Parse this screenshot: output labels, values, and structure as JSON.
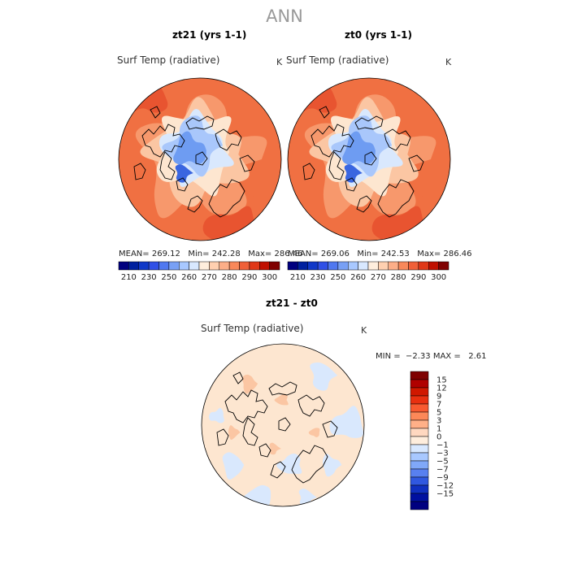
{
  "figure": {
    "title": "ANN"
  },
  "panels": [
    {
      "title": "zt21 (yrs 1-1)",
      "variable": "Surf Temp (radiative)",
      "units": "K",
      "stats": {
        "mean_label": "MEAN=",
        "mean": "269.12",
        "min_label": "Min=",
        "min": "242.28",
        "max_label": "Max=",
        "max": "286.46"
      },
      "colorbar": {
        "colors": [
          "#00007f",
          "#00209f",
          "#1038c8",
          "#3050e6",
          "#5078f0",
          "#78a0f5",
          "#a8c8ff",
          "#d8e8ff",
          "#ffeedd",
          "#ffd0b0",
          "#fcae88",
          "#f8885a",
          "#f06038",
          "#e03818",
          "#c01000",
          "#800000"
        ],
        "tick_labels": [
          "210",
          "230",
          "250",
          "260",
          "270",
          "280",
          "290",
          "300"
        ]
      }
    },
    {
      "title": "zt0 (yrs 1-1)",
      "variable": "Surf Temp (radiative)",
      "units": "K",
      "stats": {
        "mean_label": "MEAN=",
        "mean": "269.06",
        "min_label": "Min=",
        "min": "242.53",
        "max_label": "Max=",
        "max": "286.46"
      },
      "colorbar": {
        "colors": [
          "#00007f",
          "#00209f",
          "#1038c8",
          "#3050e6",
          "#5078f0",
          "#78a0f5",
          "#a8c8ff",
          "#d8e8ff",
          "#ffeedd",
          "#ffd0b0",
          "#fcae88",
          "#f8885a",
          "#f06038",
          "#e03818",
          "#c01000",
          "#800000"
        ],
        "tick_labels": [
          "210",
          "230",
          "250",
          "260",
          "270",
          "280",
          "290",
          "300"
        ]
      }
    }
  ],
  "difference": {
    "title": "zt21 - zt0",
    "variable": "Surf Temp (radiative)",
    "units": "K",
    "stats": {
      "min_label": "MIN =",
      "min": "−2.33",
      "max_label": "MAX =",
      "max": "2.61"
    },
    "colorbar": {
      "colors": [
        "#7f0000",
        "#b00000",
        "#d01800",
        "#e83010",
        "#f85a30",
        "#fc8858",
        "#ffb088",
        "#ffd8c0",
        "#ffeedd",
        "#d8e8ff",
        "#a8c8ff",
        "#80a8f8",
        "#5880f0",
        "#3058e0",
        "#1030c0",
        "#0010a0",
        "#000080"
      ],
      "tick_labels": [
        "15",
        "12",
        "9",
        "7",
        "5",
        "3",
        "1",
        "0",
        "−1",
        "−3",
        "−5",
        "−7",
        "−9",
        "−12",
        "−15"
      ]
    }
  },
  "map_colors": {
    "deep_blue": "#3a66e0",
    "blue": "#6e9cf2",
    "light_blue": "#a9c7fb",
    "pale_blue": "#d9e8fd",
    "cream": "#fde6d0",
    "peach": "#fbc6a3",
    "salmon": "#f7986c",
    "orange": "#f07042",
    "red": "#e85430",
    "outline": "#000000"
  }
}
